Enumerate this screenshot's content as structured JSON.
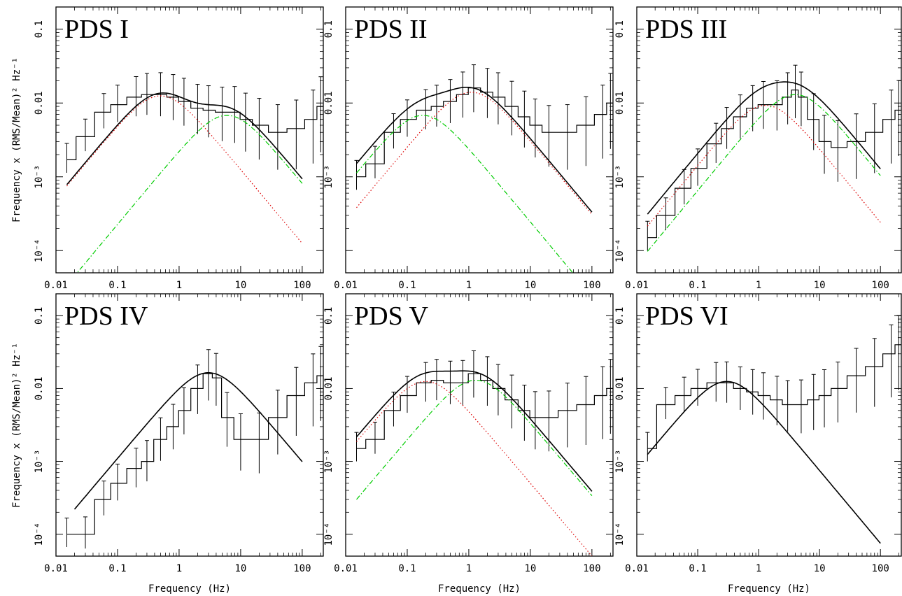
{
  "figure": {
    "ylabel": "Frequency x (RMS/Mean)² Hz⁻¹",
    "xlabel": "Frequency (Hz)"
  },
  "chart_data": [
    {
      "type": "line",
      "title": "PDS I",
      "scale": "log-log",
      "xlim": [
        0.01,
        220
      ],
      "ylim": [
        5e-05,
        0.2
      ],
      "x_ticks": [
        "0.01",
        "0.1",
        "1",
        "10",
        "100"
      ],
      "y_ticks": [
        "10⁻⁴",
        "10⁻³",
        "0.01",
        "0.1"
      ],
      "data_step": {
        "x": [
          0.015,
          0.03,
          0.06,
          0.1,
          0.2,
          0.3,
          0.5,
          0.8,
          1.2,
          2,
          3,
          5,
          8,
          12,
          20,
          40,
          80,
          150,
          200
        ],
        "y": [
          0.0017,
          0.0035,
          0.0075,
          0.0095,
          0.012,
          0.013,
          0.013,
          0.012,
          0.0105,
          0.0085,
          0.008,
          0.0075,
          0.0075,
          0.006,
          0.005,
          0.004,
          0.0045,
          0.006,
          0.009
        ]
      },
      "components": [
        {
          "color": "#dd0000",
          "dash": "dot",
          "peak_x": 0.5,
          "peak_y": 0.0125,
          "x_start": 0.015,
          "x_end": 100
        },
        {
          "color": "#00cc00",
          "dash": "dashdot",
          "peak_x": 6.0,
          "peak_y": 0.0068,
          "x_start": 0.015,
          "x_end": 100
        }
      ],
      "total": {
        "x_start": 0.015,
        "x_end": 100
      }
    },
    {
      "type": "line",
      "title": "PDS II",
      "scale": "log-log",
      "xlim": [
        0.01,
        220
      ],
      "ylim": [
        5e-05,
        0.2
      ],
      "x_ticks": [
        "0.01",
        "0.1",
        "1",
        "10",
        "100"
      ],
      "y_ticks": [
        "10⁻³",
        "0.01",
        "0.1"
      ],
      "data_step": {
        "x": [
          0.015,
          0.03,
          0.06,
          0.1,
          0.2,
          0.3,
          0.5,
          0.8,
          1.2,
          2,
          3,
          5,
          8,
          12,
          20,
          40,
          80,
          150,
          200
        ],
        "y": [
          0.001,
          0.0015,
          0.004,
          0.006,
          0.008,
          0.009,
          0.0105,
          0.013,
          0.016,
          0.014,
          0.012,
          0.009,
          0.0065,
          0.005,
          0.004,
          0.004,
          0.005,
          0.007,
          0.01
        ]
      },
      "components": [
        {
          "color": "#dd0000",
          "dash": "dot",
          "peak_x": 1.1,
          "peak_y": 0.014,
          "x_start": 0.015,
          "x_end": 100
        },
        {
          "color": "#00cc00",
          "dash": "dashdot",
          "peak_x": 0.18,
          "peak_y": 0.0068,
          "x_start": 0.015,
          "x_end": 100
        }
      ],
      "total": {
        "x_start": 0.015,
        "x_end": 100
      }
    },
    {
      "type": "line",
      "title": "PDS III",
      "scale": "log-log",
      "xlim": [
        0.01,
        220
      ],
      "ylim": [
        5e-05,
        0.2
      ],
      "x_ticks": [
        "0.01",
        "0.1",
        "1",
        "10",
        "100"
      ],
      "y_ticks": [
        "10⁻⁴",
        "10⁻³",
        "0.01",
        "0.1"
      ],
      "data_step": {
        "x": [
          0.015,
          0.03,
          0.06,
          0.1,
          0.2,
          0.3,
          0.5,
          0.8,
          1.2,
          2,
          3,
          4,
          5,
          8,
          12,
          20,
          40,
          80,
          150,
          200
        ],
        "y": [
          0.00015,
          0.0003,
          0.0007,
          0.0013,
          0.0028,
          0.0045,
          0.0065,
          0.0085,
          0.0095,
          0.0095,
          0.012,
          0.015,
          0.012,
          0.006,
          0.003,
          0.0025,
          0.003,
          0.004,
          0.006,
          0.008
        ]
      },
      "components": [
        {
          "color": "#dd0000",
          "dash": "dot",
          "peak_x": 1.3,
          "peak_y": 0.0093,
          "x_start": 0.015,
          "x_end": 100
        },
        {
          "color": "#00cc00",
          "dash": "dashdot",
          "peak_x": 4.0,
          "peak_y": 0.013,
          "x_start": 0.015,
          "x_end": 100
        }
      ],
      "total": {
        "x_start": 0.015,
        "x_end": 100
      }
    },
    {
      "type": "line",
      "title": "PDS IV",
      "scale": "log-log",
      "xlim": [
        0.01,
        220
      ],
      "ylim": [
        5e-05,
        0.2
      ],
      "x_ticks": [
        "0.01",
        "0.1",
        "1",
        "10",
        "100"
      ],
      "y_ticks": [
        "10⁻⁴",
        "10⁻³",
        "0.01",
        "0.1"
      ],
      "data_step": {
        "x": [
          0.015,
          0.03,
          0.06,
          0.1,
          0.2,
          0.3,
          0.5,
          0.8,
          1.2,
          2,
          3,
          4,
          6,
          10,
          20,
          40,
          80,
          150,
          200
        ],
        "y": [
          0.0001,
          0.0001,
          0.0003,
          0.0005,
          0.0008,
          0.001,
          0.002,
          0.003,
          0.005,
          0.01,
          0.016,
          0.014,
          0.004,
          0.002,
          0.002,
          0.004,
          0.008,
          0.012,
          0.015
        ]
      },
      "components": [],
      "total": {
        "peak_x": 3.0,
        "peak_y": 0.0165,
        "x_start": 0.02,
        "x_end": 100
      }
    },
    {
      "type": "line",
      "title": "PDS V",
      "scale": "log-log",
      "xlim": [
        0.01,
        220
      ],
      "ylim": [
        5e-05,
        0.2
      ],
      "x_ticks": [
        "0.01",
        "0.1",
        "1",
        "10",
        "100"
      ],
      "y_ticks": [
        "10⁻⁴",
        "10⁻³",
        "0.01",
        "0.1"
      ],
      "data_step": {
        "x": [
          0.015,
          0.03,
          0.06,
          0.1,
          0.2,
          0.3,
          0.5,
          0.8,
          1.2,
          2,
          3,
          5,
          8,
          12,
          20,
          40,
          80,
          150,
          200
        ],
        "y": [
          0.0015,
          0.002,
          0.005,
          0.008,
          0.012,
          0.013,
          0.012,
          0.012,
          0.016,
          0.013,
          0.01,
          0.007,
          0.005,
          0.004,
          0.004,
          0.005,
          0.006,
          0.008,
          0.01
        ]
      },
      "components": [
        {
          "color": "#dd0000",
          "dash": "dot",
          "peak_x": 0.2,
          "peak_y": 0.0125,
          "x_start": 0.015,
          "x_end": 100
        },
        {
          "color": "#00cc00",
          "dash": "dashdot",
          "peak_x": 1.3,
          "peak_y": 0.013,
          "x_start": 0.015,
          "x_end": 100
        }
      ],
      "total": {
        "x_start": 0.015,
        "x_end": 100
      }
    },
    {
      "type": "line",
      "title": "PDS VI",
      "scale": "log-log",
      "xlim": [
        0.01,
        220
      ],
      "ylim": [
        5e-05,
        0.2
      ],
      "x_ticks": [
        "0.01",
        "0.1",
        "1",
        "10",
        "100"
      ],
      "y_ticks": [
        "10⁻⁴",
        "10⁻³",
        "0.01",
        "0.1"
      ],
      "data_step": {
        "x": [
          0.015,
          0.03,
          0.06,
          0.1,
          0.2,
          0.3,
          0.5,
          0.8,
          1.2,
          2,
          3,
          5,
          8,
          12,
          20,
          40,
          80,
          150,
          200
        ],
        "y": [
          0.0015,
          0.006,
          0.008,
          0.01,
          0.012,
          0.012,
          0.01,
          0.009,
          0.008,
          0.007,
          0.006,
          0.006,
          0.007,
          0.008,
          0.01,
          0.015,
          0.02,
          0.03,
          0.04
        ]
      },
      "components": [],
      "total": {
        "peak_x": 0.3,
        "peak_y": 0.0125,
        "x_start": 0.015,
        "x_end": 100
      }
    }
  ]
}
